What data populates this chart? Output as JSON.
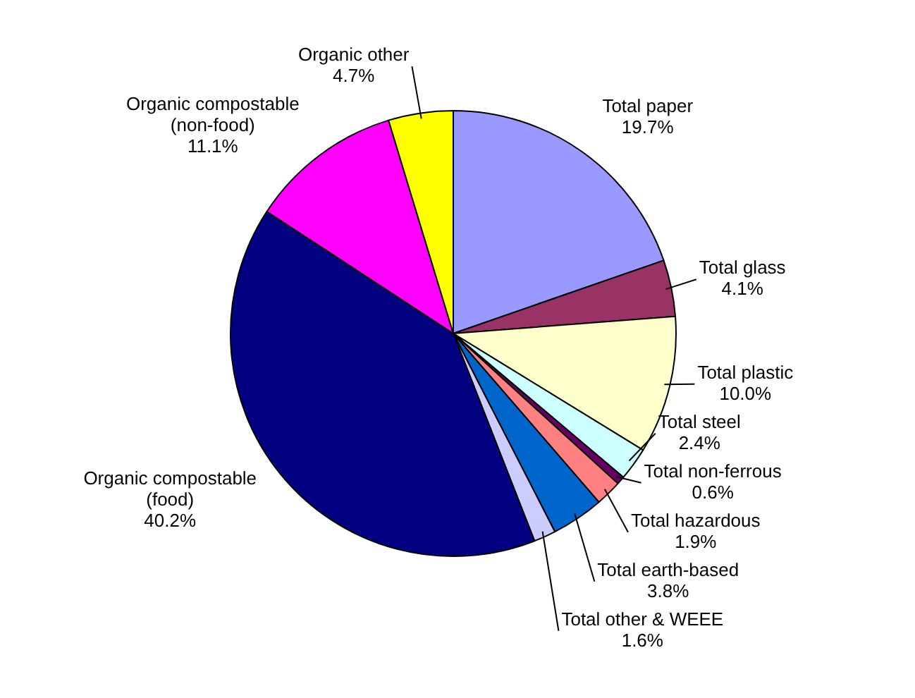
{
  "chart_data": {
    "type": "pie",
    "categories": [
      "Total paper",
      "Total glass",
      "Total plastic",
      "Total steel",
      "Total non-ferrous",
      "Total hazardous",
      "Total earth-based",
      "Total other & WEEE",
      "Organic compostable (food)",
      "Organic compostable (non-food)",
      "Organic other"
    ],
    "values": [
      19.7,
      4.1,
      10.0,
      2.4,
      0.6,
      1.9,
      3.8,
      1.6,
      40.2,
      11.1,
      4.7
    ],
    "value_labels": [
      "19.7%",
      "4.1%",
      "10.0%",
      "2.4%",
      "0.6%",
      "1.9%",
      "3.8%",
      "1.6%",
      "40.2%",
      "11.1%",
      "4.7%"
    ],
    "colors": [
      "#9999ff",
      "#993366",
      "#ffffcc",
      "#ccffff",
      "#660066",
      "#ff8080",
      "#0066cc",
      "#ccccff",
      "#000080",
      "#ff00ff",
      "#ffff00"
    ],
    "legend": false
  }
}
